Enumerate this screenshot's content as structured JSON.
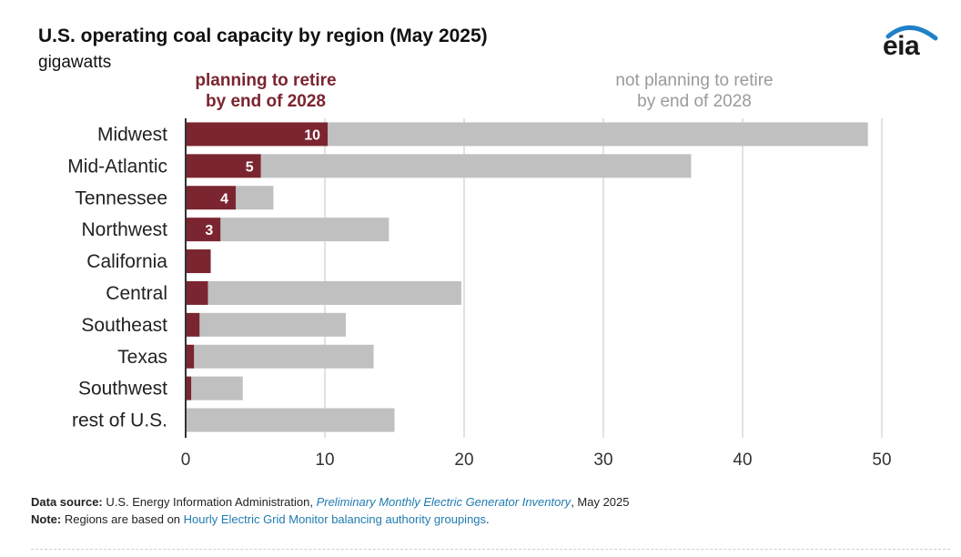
{
  "header": {
    "title": "U.S. operating coal capacity by region (May 2025)",
    "subtitle": "gigawatts",
    "logo_text": "eia"
  },
  "chart_data": {
    "type": "bar",
    "orientation": "horizontal",
    "stacked": true,
    "categories": [
      "Midwest",
      "Mid-Atlantic",
      "Tennessee",
      "Northwest",
      "California",
      "Central",
      "Southeast",
      "Texas",
      "Southwest",
      "rest of U.S."
    ],
    "series": [
      {
        "name": "planning to retire by end of 2028",
        "name_lines": [
          "planning to retire",
          "by end of 2028"
        ],
        "color": "#7b2530",
        "values": [
          10.2,
          5.4,
          3.6,
          2.5,
          1.8,
          1.6,
          1.0,
          0.6,
          0.4,
          0.0
        ],
        "data_labels": [
          "10",
          "5",
          "4",
          "3",
          "",
          "",
          "",
          "",
          "",
          ""
        ]
      },
      {
        "name": "not planning to retire by end of 2028",
        "name_lines": [
          "not planning to retire",
          "by end of 2028"
        ],
        "color": "#c0c0c0",
        "values": [
          38.8,
          30.9,
          2.7,
          12.1,
          0.0,
          18.2,
          10.5,
          12.9,
          3.7,
          15.0
        ]
      }
    ],
    "xlim": [
      0,
      50
    ],
    "xticks": [
      "0",
      "10",
      "20",
      "30",
      "40",
      "50"
    ],
    "grid": true,
    "legend_placement": "top"
  },
  "footer": {
    "source_label": "Data source:",
    "source_text_1": " U.S. Energy Information Administration, ",
    "source_link": "Preliminary Monthly Electric Generator Inventory",
    "source_text_2": ", May 2025",
    "note_label": "Note:",
    "note_text_1": " Regions are based on ",
    "note_link": "Hourly Electric Grid Monitor balancing authority groupings",
    "note_text_2": "."
  }
}
